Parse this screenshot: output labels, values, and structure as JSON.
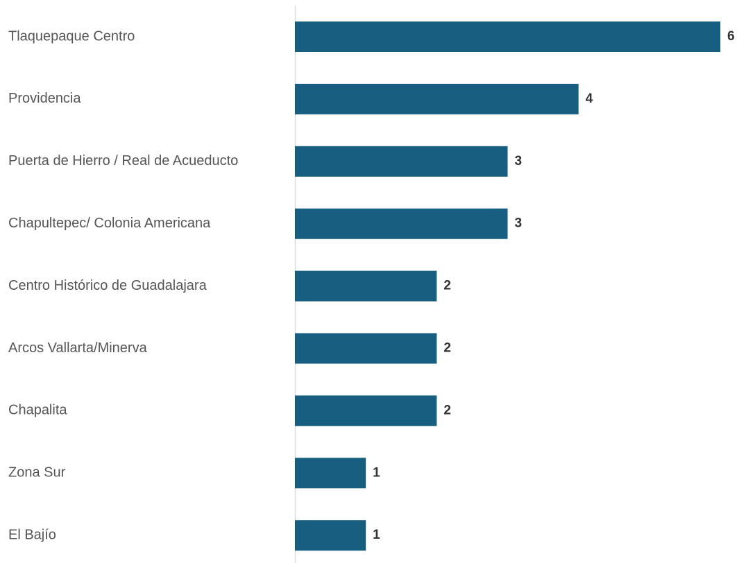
{
  "chart_data": {
    "type": "barh",
    "categories": [
      "Tlaquepaque Centro",
      "Providencia",
      "Puerta de Hierro / Real de Acueducto",
      "Chapultepec/ Colonia Americana",
      "Centro Histórico de Guadalajara",
      "Arcos Vallarta/Minerva",
      "Chapalita",
      "Zona Sur",
      "El Bajío"
    ],
    "values": [
      6,
      4,
      3,
      3,
      2,
      2,
      2,
      1,
      1
    ],
    "color": "#175e80",
    "xlim": [
      0,
      6
    ]
  }
}
